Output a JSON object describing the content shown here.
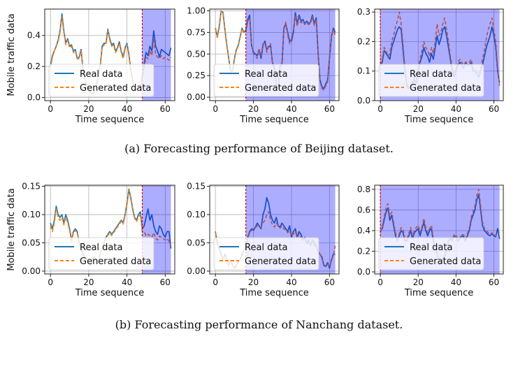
{
  "captions": {
    "a": "(a) Forecasting performance of Beijing dataset.",
    "b": "(b) Forecasting performance of Nanchang dataset."
  },
  "colors": {
    "real": "#1f77b4",
    "generated": "#ff7f0e",
    "forecast_region": "#0000ff",
    "split_line": "#cc0000",
    "grid": "#b0b0b0"
  },
  "chart_data": [
    {
      "type": "line",
      "row": 0,
      "col": 0,
      "dataset": "Beijing",
      "xlabel": "Time sequence",
      "ylabel": "Mobile traffic data",
      "xlim": [
        -3,
        65
      ],
      "ylim": [
        -0.02,
        0.57
      ],
      "xticks": [
        0,
        20,
        40,
        60
      ],
      "yticks": [
        0.0,
        0.2,
        0.4
      ],
      "ytick_labels": [
        "0.0",
        "0.2",
        "0.4"
      ],
      "split_x": 48,
      "shade_end": 63,
      "legend": [
        "Real data",
        "Generated data"
      ],
      "legend_loc": "lower-left",
      "series": [
        {
          "name": "Real data",
          "values": [
            0.2,
            0.27,
            0.3,
            0.33,
            0.37,
            0.43,
            0.54,
            0.43,
            0.35,
            0.38,
            0.33,
            0.34,
            0.3,
            0.31,
            0.25,
            0.26,
            0.31,
            0.18,
            0.12,
            0.08,
            0.05,
            0.03,
            0.02,
            0.04,
            0.08,
            0.14,
            0.2,
            0.33,
            0.35,
            0.35,
            0.44,
            0.38,
            0.34,
            0.35,
            0.3,
            0.32,
            0.36,
            0.3,
            0.26,
            0.32,
            0.35,
            0.28,
            0.18,
            0.11,
            0.05,
            0.05,
            0.06,
            0.07,
            0.14,
            0.22,
            0.29,
            0.27,
            0.33,
            0.3,
            0.43,
            0.33,
            0.3,
            0.26,
            0.31,
            0.3,
            0.29,
            0.28,
            0.27,
            0.32
          ]
        },
        {
          "name": "Generated data",
          "values": [
            0.19,
            0.26,
            0.3,
            0.33,
            0.36,
            0.42,
            0.52,
            0.42,
            0.34,
            0.37,
            0.32,
            0.33,
            0.29,
            0.3,
            0.25,
            0.25,
            0.3,
            0.18,
            0.12,
            0.08,
            0.05,
            0.03,
            0.02,
            0.04,
            0.08,
            0.14,
            0.2,
            0.32,
            0.34,
            0.34,
            0.43,
            0.37,
            0.33,
            0.34,
            0.29,
            0.31,
            0.35,
            0.29,
            0.25,
            0.31,
            0.34,
            0.27,
            0.18,
            0.11,
            0.05,
            0.05,
            0.06,
            0.07,
            0.13,
            0.2,
            0.26,
            0.25,
            0.3,
            0.27,
            0.38,
            0.28,
            0.26,
            0.25,
            0.27,
            0.25,
            0.26,
            0.25,
            0.24,
            0.26
          ]
        }
      ]
    },
    {
      "type": "line",
      "row": 0,
      "col": 1,
      "dataset": "Beijing",
      "xlabel": "Time sequence",
      "ylabel": "",
      "xlim": [
        -3,
        65
      ],
      "ylim": [
        -0.04,
        1.02
      ],
      "xticks": [
        0,
        20,
        40,
        60
      ],
      "yticks": [
        0.0,
        0.25,
        0.5,
        0.75,
        1.0
      ],
      "ytick_labels": [
        "0.00",
        "0.25",
        "0.50",
        "0.75",
        "1.00"
      ],
      "split_x": 16,
      "shade_end": 63,
      "legend": [
        "Real data",
        "Generated data"
      ],
      "legend_loc": "lower-left",
      "series": [
        {
          "name": "Real data",
          "values": [
            0.8,
            0.7,
            0.82,
            1.0,
            0.98,
            0.78,
            0.6,
            0.45,
            0.3,
            0.3,
            0.45,
            0.55,
            0.6,
            0.7,
            0.8,
            0.75,
            0.78,
            0.9,
            0.95,
            0.6,
            0.52,
            0.5,
            0.48,
            0.55,
            0.45,
            0.6,
            0.65,
            0.55,
            0.58,
            0.6,
            0.4,
            0.35,
            0.15,
            0.12,
            0.35,
            0.38,
            0.8,
            0.85,
            0.75,
            0.65,
            0.65,
            0.75,
            0.98,
            0.85,
            0.95,
            0.88,
            0.9,
            0.85,
            0.88,
            0.85,
            0.87,
            0.95,
            0.85,
            0.92,
            0.5,
            0.2,
            0.12,
            0.1,
            0.15,
            0.2,
            0.45,
            0.7,
            0.8,
            0.75
          ]
        },
        {
          "name": "Generated data",
          "values": [
            0.79,
            0.69,
            0.8,
            1.0,
            0.97,
            0.77,
            0.59,
            0.44,
            0.29,
            0.29,
            0.44,
            0.54,
            0.59,
            0.69,
            0.79,
            0.74,
            0.75,
            0.88,
            0.92,
            0.62,
            0.5,
            0.48,
            0.45,
            0.55,
            0.48,
            0.62,
            0.63,
            0.52,
            0.6,
            0.62,
            0.38,
            0.33,
            0.12,
            0.1,
            0.38,
            0.4,
            0.78,
            0.87,
            0.72,
            0.62,
            0.68,
            0.78,
            0.95,
            0.82,
            0.92,
            0.86,
            0.88,
            0.84,
            0.86,
            0.84,
            0.85,
            0.93,
            0.83,
            0.9,
            0.52,
            0.18,
            0.1,
            0.08,
            0.13,
            0.18,
            0.48,
            0.72,
            0.78,
            0.72
          ]
        }
      ]
    },
    {
      "type": "line",
      "row": 0,
      "col": 2,
      "dataset": "Beijing",
      "xlabel": "Time sequence",
      "ylabel": "",
      "xlim": [
        -3,
        65
      ],
      "ylim": [
        0.0,
        0.31
      ],
      "xticks": [
        0,
        20,
        40,
        60
      ],
      "yticks": [
        0.0,
        0.1,
        0.2,
        0.3
      ],
      "ytick_labels": [
        "0.0",
        "0.1",
        "0.2",
        "0.3"
      ],
      "split_x": 0,
      "shade_end": 63,
      "legend": [
        "Real data",
        "Generated data"
      ],
      "legend_loc": "lower-left",
      "series": [
        {
          "name": "Real data",
          "values": [
            0.12,
            0.13,
            0.17,
            0.16,
            0.15,
            0.14,
            0.18,
            0.2,
            0.22,
            0.24,
            0.25,
            0.24,
            0.17,
            0.1,
            0.05,
            0.04,
            0.05,
            0.06,
            0.07,
            0.06,
            0.1,
            0.13,
            0.15,
            0.18,
            0.16,
            0.15,
            0.13,
            0.16,
            0.14,
            0.18,
            0.22,
            0.19,
            0.21,
            0.24,
            0.25,
            0.22,
            0.18,
            0.14,
            0.1,
            0.08,
            0.1,
            0.12,
            0.13,
            0.12,
            0.11,
            0.13,
            0.12,
            0.12,
            0.13,
            0.1,
            0.1,
            0.09,
            0.08,
            0.1,
            0.12,
            0.15,
            0.18,
            0.2,
            0.22,
            0.25,
            0.22,
            0.18,
            0.1,
            0.06
          ]
        },
        {
          "name": "Generated data",
          "values": [
            0.12,
            0.14,
            0.18,
            0.17,
            0.15,
            0.16,
            0.2,
            0.22,
            0.25,
            0.27,
            0.3,
            0.26,
            0.19,
            0.11,
            0.06,
            0.04,
            0.05,
            0.07,
            0.08,
            0.07,
            0.11,
            0.14,
            0.17,
            0.2,
            0.18,
            0.17,
            0.15,
            0.18,
            0.16,
            0.2,
            0.26,
            0.22,
            0.23,
            0.26,
            0.28,
            0.24,
            0.2,
            0.15,
            0.11,
            0.09,
            0.11,
            0.13,
            0.14,
            0.13,
            0.12,
            0.13,
            0.13,
            0.13,
            0.14,
            0.11,
            0.11,
            0.1,
            0.09,
            0.11,
            0.14,
            0.17,
            0.21,
            0.24,
            0.26,
            0.28,
            0.24,
            0.2,
            0.11,
            0.05
          ]
        }
      ]
    },
    {
      "type": "line",
      "row": 1,
      "col": 0,
      "dataset": "Nanchang",
      "xlabel": "Time sequence",
      "ylabel": "Mobile traffic data",
      "xlim": [
        -3,
        65
      ],
      "ylim": [
        -0.005,
        0.152
      ],
      "xticks": [
        0,
        20,
        40,
        60
      ],
      "yticks": [
        0.0,
        0.05,
        0.1,
        0.15
      ],
      "ytick_labels": [
        "0.00",
        "0.05",
        "0.10",
        "0.15"
      ],
      "split_x": 48,
      "shade_end": 63,
      "legend": [
        "Real data",
        "Generated data"
      ],
      "legend_loc": "lower-left",
      "series": [
        {
          "name": "Real data",
          "values": [
            0.085,
            0.075,
            0.09,
            0.115,
            0.1,
            0.095,
            0.1,
            0.085,
            0.1,
            0.09,
            0.075,
            0.055,
            0.07,
            0.075,
            0.07,
            0.05,
            0.04,
            0.03,
            0.025,
            0.02,
            0.015,
            0.01,
            0.02,
            0.025,
            0.02,
            0.015,
            0.03,
            0.04,
            0.05,
            0.06,
            0.065,
            0.07,
            0.065,
            0.07,
            0.075,
            0.08,
            0.085,
            0.09,
            0.085,
            0.1,
            0.12,
            0.145,
            0.13,
            0.11,
            0.095,
            0.09,
            0.1,
            0.105,
            0.075,
            0.08,
            0.095,
            0.11,
            0.09,
            0.1,
            0.08,
            0.07,
            0.065,
            0.08,
            0.075,
            0.065,
            0.06,
            0.07,
            0.07,
            0.04
          ]
        },
        {
          "name": "Generated data",
          "values": [
            0.08,
            0.07,
            0.085,
            0.11,
            0.095,
            0.09,
            0.095,
            0.082,
            0.095,
            0.086,
            0.072,
            0.052,
            0.067,
            0.072,
            0.068,
            0.048,
            0.038,
            0.028,
            0.024,
            0.02,
            0.015,
            0.01,
            0.02,
            0.024,
            0.02,
            0.015,
            0.029,
            0.039,
            0.048,
            0.058,
            0.063,
            0.068,
            0.063,
            0.068,
            0.073,
            0.078,
            0.083,
            0.088,
            0.083,
            0.098,
            0.118,
            0.143,
            0.128,
            0.108,
            0.093,
            0.088,
            0.095,
            0.1,
            0.07,
            0.07,
            0.062,
            0.065,
            0.063,
            0.06,
            0.068,
            0.058,
            0.055,
            0.062,
            0.06,
            0.058,
            0.055,
            0.058,
            0.052,
            0.045
          ]
        }
      ]
    },
    {
      "type": "line",
      "row": 1,
      "col": 1,
      "dataset": "Nanchang",
      "xlabel": "Time sequence",
      "ylabel": "",
      "xlim": [
        -3,
        65
      ],
      "ylim": [
        -0.005,
        0.152
      ],
      "xticks": [
        0,
        20,
        40,
        60
      ],
      "yticks": [
        0.0,
        0.05,
        0.1,
        0.15
      ],
      "ytick_labels": [
        "0.00",
        "0.05",
        "0.10",
        "0.15"
      ],
      "split_x": 16,
      "shade_end": 63,
      "legend": [
        "Real data",
        "Generated data"
      ],
      "legend_loc": "lower-left",
      "series": [
        {
          "name": "Real data",
          "values": [
            0.07,
            0.05,
            0.04,
            0.03,
            0.02,
            0.03,
            0.02,
            0.01,
            0.02,
            0.01,
            0.005,
            0.01,
            0.015,
            0.02,
            0.03,
            0.035,
            0.045,
            0.06,
            0.07,
            0.075,
            0.072,
            0.078,
            0.085,
            0.08,
            0.075,
            0.1,
            0.11,
            0.13,
            0.12,
            0.1,
            0.09,
            0.085,
            0.095,
            0.08,
            0.078,
            0.085,
            0.08,
            0.075,
            0.07,
            0.08,
            0.06,
            0.07,
            0.075,
            0.06,
            0.07,
            0.065,
            0.055,
            0.06,
            0.05,
            0.055,
            0.045,
            0.055,
            0.05,
            0.045,
            0.035,
            0.03,
            0.025,
            0.01,
            0.008,
            0.015,
            0.005,
            0.02,
            0.03,
            0.03
          ]
        },
        {
          "name": "Generated data",
          "values": [
            0.068,
            0.048,
            0.038,
            0.028,
            0.02,
            0.028,
            0.02,
            0.01,
            0.02,
            0.01,
            0.005,
            0.01,
            0.015,
            0.02,
            0.028,
            0.033,
            0.045,
            0.058,
            0.068,
            0.072,
            0.075,
            0.077,
            0.08,
            0.078,
            0.078,
            0.085,
            0.09,
            0.1,
            0.105,
            0.09,
            0.082,
            0.078,
            0.085,
            0.08,
            0.076,
            0.08,
            0.075,
            0.072,
            0.068,
            0.072,
            0.062,
            0.066,
            0.07,
            0.06,
            0.065,
            0.06,
            0.055,
            0.056,
            0.048,
            0.05,
            0.045,
            0.05,
            0.047,
            0.042,
            0.033,
            0.03,
            0.022,
            0.012,
            0.008,
            0.012,
            0.008,
            0.018,
            0.028,
            0.045
          ]
        }
      ]
    },
    {
      "type": "line",
      "row": 1,
      "col": 2,
      "dataset": "Nanchang",
      "xlabel": "Time sequence",
      "ylabel": "",
      "xlim": [
        -3,
        65
      ],
      "ylim": [
        -0.02,
        0.84
      ],
      "xticks": [
        0,
        20,
        40,
        60
      ],
      "yticks": [
        0.0,
        0.2,
        0.4,
        0.6,
        0.8
      ],
      "ytick_labels": [
        "0.0",
        "0.2",
        "0.4",
        "0.6",
        "0.8"
      ],
      "split_x": 0,
      "shade_end": 63,
      "legend": [
        "Real data",
        "Generated data"
      ],
      "legend_loc": "lower-left",
      "series": [
        {
          "name": "Real data",
          "values": [
            0.4,
            0.42,
            0.5,
            0.58,
            0.62,
            0.5,
            0.55,
            0.45,
            0.35,
            0.3,
            0.35,
            0.4,
            0.38,
            0.3,
            0.3,
            0.35,
            0.4,
            0.32,
            0.38,
            0.4,
            0.42,
            0.35,
            0.42,
            0.48,
            0.4,
            0.35,
            0.4,
            0.42,
            0.3,
            0.22,
            0.18,
            0.1,
            0.08,
            0.12,
            0.15,
            0.2,
            0.3,
            0.32,
            0.3,
            0.35,
            0.34,
            0.3,
            0.32,
            0.35,
            0.34,
            0.3,
            0.35,
            0.4,
            0.5,
            0.55,
            0.6,
            0.7,
            0.75,
            0.6,
            0.45,
            0.4,
            0.38,
            0.36,
            0.35,
            0.37,
            0.35,
            0.34,
            0.42,
            0.32
          ]
        },
        {
          "name": "Generated data",
          "values": [
            0.38,
            0.44,
            0.53,
            0.62,
            0.66,
            0.54,
            0.58,
            0.48,
            0.38,
            0.32,
            0.37,
            0.43,
            0.41,
            0.32,
            0.32,
            0.37,
            0.43,
            0.35,
            0.4,
            0.43,
            0.45,
            0.38,
            0.44,
            0.52,
            0.43,
            0.38,
            0.42,
            0.45,
            0.32,
            0.23,
            0.19,
            0.11,
            0.08,
            0.13,
            0.16,
            0.21,
            0.31,
            0.33,
            0.31,
            0.36,
            0.36,
            0.31,
            0.33,
            0.36,
            0.36,
            0.32,
            0.37,
            0.42,
            0.53,
            0.58,
            0.64,
            0.74,
            0.8,
            0.64,
            0.48,
            0.42,
            0.4,
            0.38,
            0.36,
            0.38,
            0.36,
            0.35,
            0.38,
            0.38
          ]
        }
      ]
    }
  ]
}
